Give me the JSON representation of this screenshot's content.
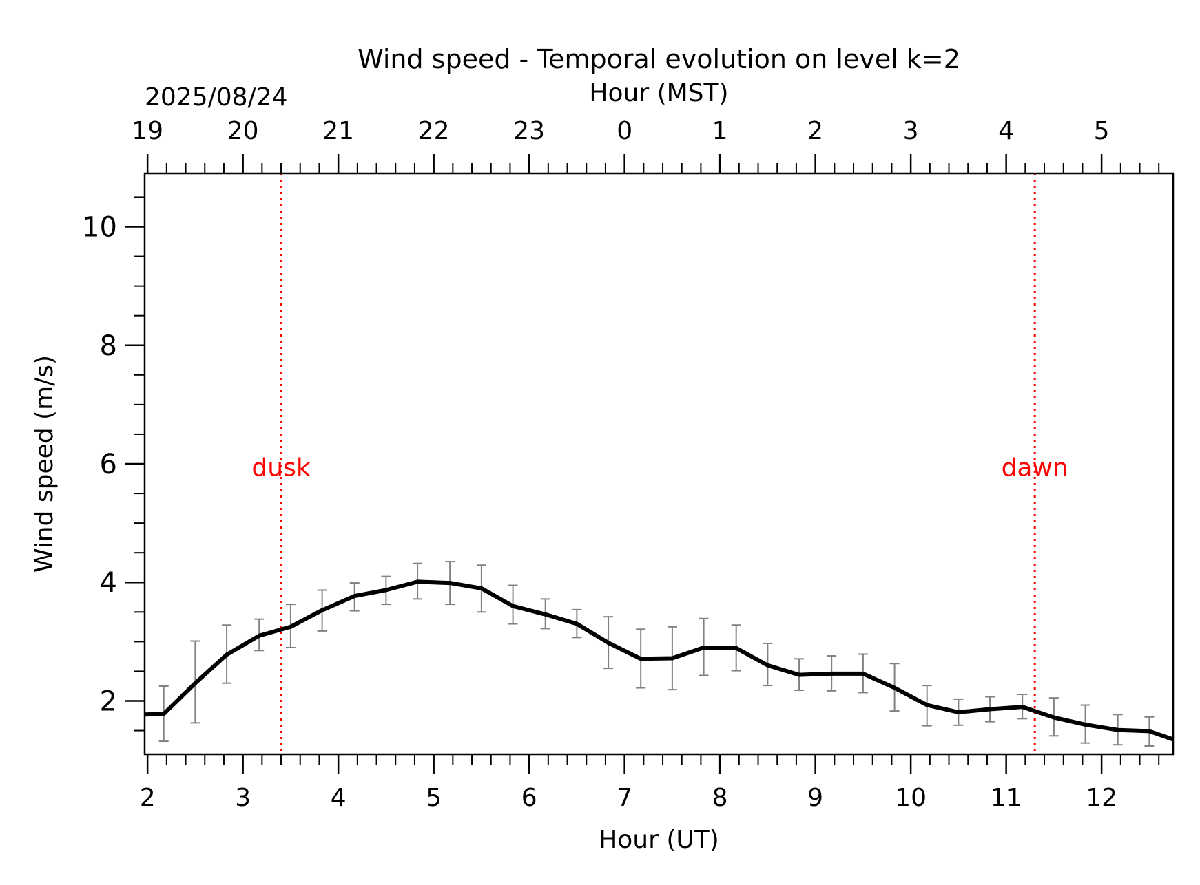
{
  "chart_data": {
    "type": "line",
    "title": "Wind speed - Temporal evolution on level k=2",
    "xlabel": "Hour (UT)",
    "ylabel": "Wind speed (m/s)",
    "top_axis": {
      "label": "Hour (MST)",
      "date_label": "2025/08/24",
      "tick_labels": [
        "19",
        "20",
        "21",
        "22",
        "23",
        "0",
        "1",
        "2",
        "3",
        "4",
        "5"
      ],
      "tick_positions_ut": [
        2,
        3,
        4,
        5,
        6,
        7,
        8,
        9,
        10,
        11,
        12
      ]
    },
    "xlim": [
      1.97,
      12.75
    ],
    "ylim": [
      1.1,
      10.9
    ],
    "x_ticks": [
      2,
      3,
      4,
      5,
      6,
      7,
      8,
      9,
      10,
      11,
      12
    ],
    "x_tick_labels": [
      "2",
      "3",
      "4",
      "5",
      "6",
      "7",
      "8",
      "9",
      "10",
      "11",
      "12"
    ],
    "y_ticks": [
      2,
      4,
      6,
      8,
      10
    ],
    "y_tick_labels": [
      "2",
      "4",
      "6",
      "8",
      "10"
    ],
    "grid": false,
    "series": [
      {
        "color": "#000000",
        "x": [
          1.97,
          2.17,
          2.5,
          2.83,
          3.17,
          3.5,
          3.83,
          4.17,
          4.5,
          4.83,
          5.17,
          5.5,
          5.83,
          6.17,
          6.5,
          6.83,
          7.17,
          7.5,
          7.83,
          8.17,
          8.5,
          8.83,
          9.17,
          9.5,
          9.83,
          10.17,
          10.5,
          10.83,
          11.17,
          11.5,
          11.83,
          12.17,
          12.5,
          12.75
        ],
        "y": [
          1.77,
          1.78,
          2.3,
          2.78,
          3.1,
          3.25,
          3.53,
          3.77,
          3.87,
          4.01,
          3.99,
          3.9,
          3.6,
          3.46,
          3.3,
          2.98,
          2.71,
          2.72,
          2.9,
          2.89,
          2.6,
          2.44,
          2.46,
          2.46,
          2.22,
          1.93,
          1.81,
          1.86,
          1.9,
          1.72,
          1.6,
          1.51,
          1.49,
          1.35
        ],
        "error_x": [
          2.17,
          2.5,
          2.83,
          3.17,
          3.5,
          3.83,
          4.17,
          4.5,
          4.83,
          5.17,
          5.5,
          5.83,
          6.17,
          6.5,
          6.83,
          7.17,
          7.5,
          7.83,
          8.17,
          8.5,
          8.83,
          9.17,
          9.5,
          9.83,
          10.17,
          10.5,
          10.83,
          11.17,
          11.5,
          11.83,
          12.17,
          12.5
        ],
        "error_low": [
          1.32,
          1.63,
          2.3,
          2.85,
          2.9,
          3.18,
          3.52,
          3.63,
          3.72,
          3.63,
          3.5,
          3.3,
          3.22,
          3.07,
          2.55,
          2.22,
          2.19,
          2.43,
          2.51,
          2.26,
          2.18,
          2.17,
          2.14,
          1.83,
          1.58,
          1.59,
          1.65,
          1.7,
          1.41,
          1.29,
          1.26,
          1.24
        ],
        "error_high": [
          2.25,
          3.01,
          3.28,
          3.38,
          3.63,
          3.87,
          3.99,
          4.1,
          4.32,
          4.35,
          4.29,
          3.95,
          3.72,
          3.54,
          3.42,
          3.21,
          3.25,
          3.39,
          3.28,
          2.97,
          2.71,
          2.76,
          2.79,
          2.63,
          2.26,
          2.03,
          2.07,
          2.11,
          2.05,
          1.93,
          1.77,
          1.73
        ],
        "error_color": "#808080"
      }
    ],
    "annotations": [
      {
        "text": "dusk",
        "x": 3.4,
        "y": 5.95,
        "color": "#ff0000",
        "line": "dotted-vertical"
      },
      {
        "text": "dawn",
        "x": 11.3,
        "y": 5.95,
        "color": "#ff0000",
        "line": "dotted-vertical"
      }
    ]
  }
}
